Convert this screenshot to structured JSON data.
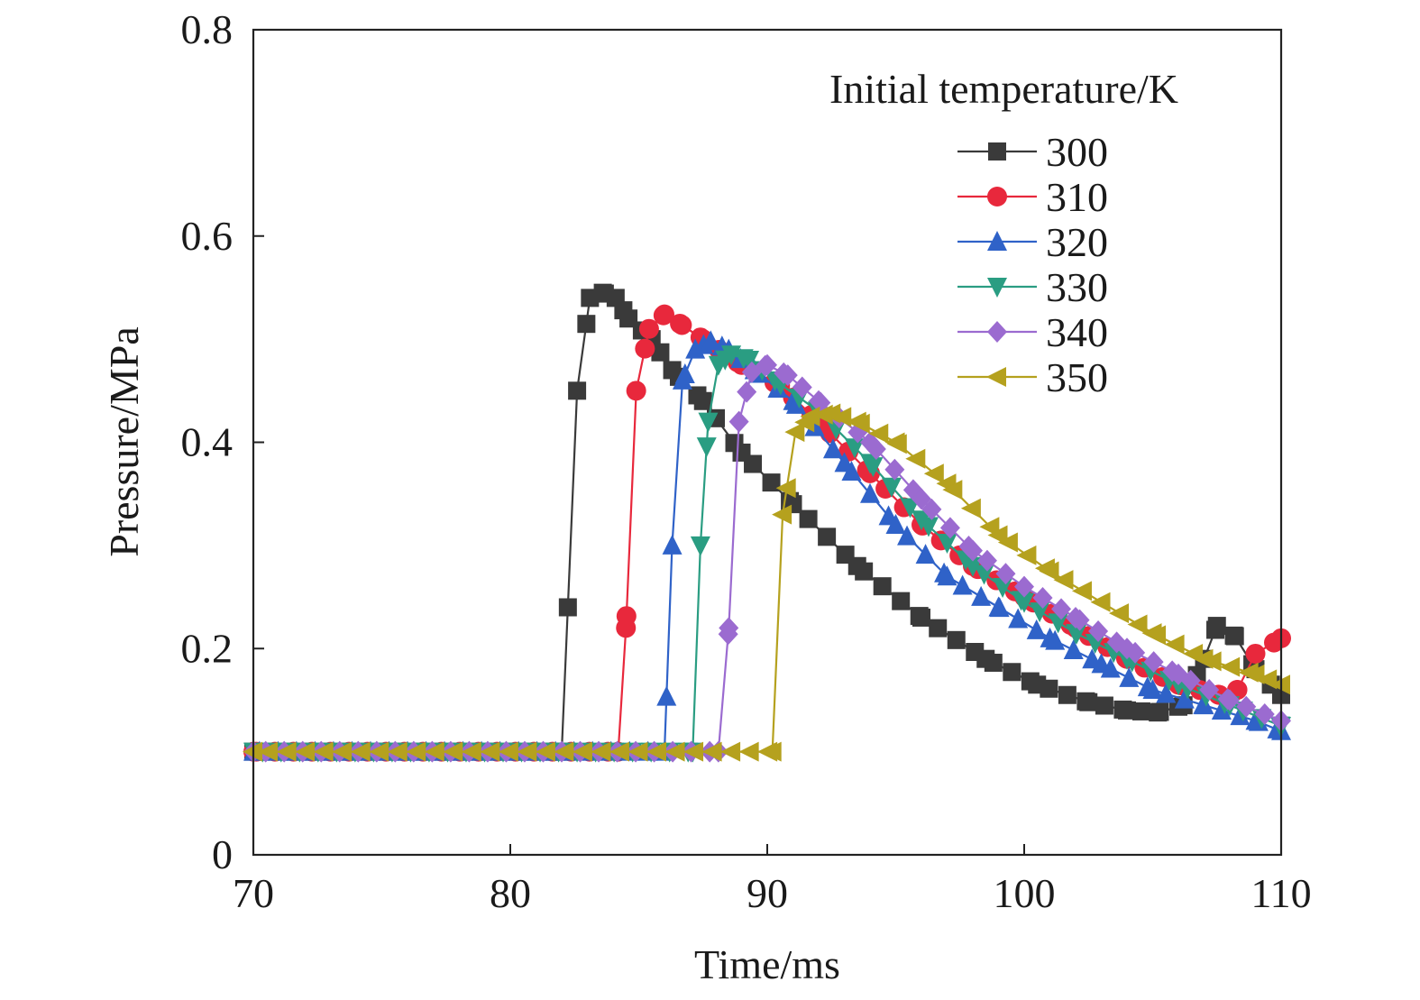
{
  "chart_data": {
    "type": "line",
    "xlabel": "Time/ms",
    "ylabel": "Pressure/MPa",
    "xlim": [
      70,
      110
    ],
    "ylim": [
      0,
      0.8
    ],
    "xticks": [
      70,
      80,
      90,
      100,
      110
    ],
    "xtick_labels": [
      "70",
      "80",
      "90",
      "100",
      "110"
    ],
    "yticks": [
      0,
      0.2,
      0.4,
      0.6,
      0.8
    ],
    "ytick_labels": [
      "0",
      "0.2",
      "0.4",
      "0.6",
      "0.8"
    ],
    "grid": false,
    "legend": {
      "title": "Initial temperature/K",
      "position": "top-right"
    },
    "series": [
      {
        "name": "300",
        "color": "#3a3a3a",
        "marker": "square",
        "x": [
          70,
          82,
          82.6,
          83.1,
          83.6,
          84.1,
          84.6,
          85.5,
          86.3,
          87.5,
          89,
          91,
          93.5,
          96,
          98.5,
          100.5,
          102.5,
          104,
          105.2,
          106.2,
          107,
          107.5,
          108.2,
          109,
          110
        ],
        "y": [
          0.1,
          0.1,
          0.45,
          0.54,
          0.545,
          0.54,
          0.52,
          0.5,
          0.47,
          0.44,
          0.39,
          0.34,
          0.28,
          0.23,
          0.19,
          0.165,
          0.148,
          0.14,
          0.138,
          0.145,
          0.19,
          0.222,
          0.212,
          0.18,
          0.155
        ]
      },
      {
        "name": "310",
        "color": "#e8283c",
        "marker": "circle",
        "x": [
          70,
          84.2,
          84.5,
          84.9,
          85.4,
          86,
          86.6,
          87.5,
          89,
          90.5,
          92,
          94,
          96,
          98,
          100,
          102,
          104,
          106,
          107.6,
          108.3,
          109,
          110
        ],
        "y": [
          0.1,
          0.1,
          0.22,
          0.45,
          0.51,
          0.524,
          0.515,
          0.5,
          0.475,
          0.455,
          0.42,
          0.37,
          0.32,
          0.28,
          0.25,
          0.22,
          0.19,
          0.165,
          0.155,
          0.16,
          0.195,
          0.21
        ]
      },
      {
        "name": "320",
        "color": "#2f62c8",
        "marker": "triangle-up",
        "x": [
          70,
          86,
          86.3,
          86.7,
          87.2,
          87.8,
          88.5,
          89.5,
          91,
          93,
          95,
          97,
          99,
          101,
          103,
          105,
          107,
          109,
          110
        ],
        "y": [
          0.1,
          0.1,
          0.3,
          0.46,
          0.49,
          0.498,
          0.49,
          0.47,
          0.44,
          0.38,
          0.32,
          0.27,
          0.24,
          0.21,
          0.185,
          0.16,
          0.145,
          0.13,
          0.12
        ]
      },
      {
        "name": "330",
        "color": "#2a9d82",
        "marker": "triangle-down",
        "x": [
          70,
          87.1,
          87.4,
          87.7,
          88.1,
          88.6,
          89.3,
          90.3,
          92,
          94,
          96,
          98,
          100,
          102,
          104,
          106,
          108,
          110
        ],
        "y": [
          0.1,
          0.1,
          0.3,
          0.42,
          0.475,
          0.485,
          0.48,
          0.46,
          0.43,
          0.38,
          0.325,
          0.28,
          0.245,
          0.215,
          0.19,
          0.165,
          0.145,
          0.125
        ]
      },
      {
        "name": "340",
        "color": "#9b6bd0",
        "marker": "diamond",
        "x": [
          70,
          88.1,
          88.5,
          88.9,
          89.4,
          90,
          90.8,
          92,
          94,
          96,
          98,
          100,
          102,
          104,
          106,
          108,
          110
        ],
        "y": [
          0.1,
          0.1,
          0.22,
          0.42,
          0.468,
          0.475,
          0.465,
          0.44,
          0.4,
          0.345,
          0.295,
          0.26,
          0.23,
          0.2,
          0.175,
          0.15,
          0.13
        ]
      },
      {
        "name": "350",
        "color": "#b5a11e",
        "marker": "triangle-left",
        "x": [
          70,
          90.2,
          90.6,
          91.1,
          91.7,
          92.5,
          93.5,
          95,
          97,
          99,
          101,
          103,
          105,
          107,
          109,
          110
        ],
        "y": [
          0.1,
          0.1,
          0.33,
          0.41,
          0.425,
          0.428,
          0.42,
          0.4,
          0.36,
          0.31,
          0.275,
          0.245,
          0.215,
          0.19,
          0.175,
          0.165
        ]
      }
    ]
  }
}
